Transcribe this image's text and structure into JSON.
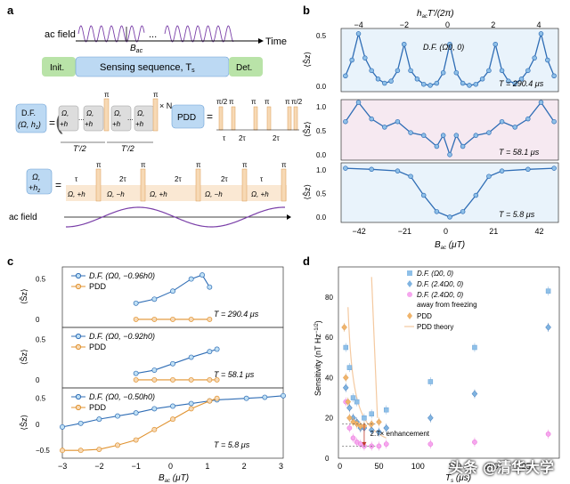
{
  "panels": {
    "a": {
      "label": "a",
      "ac_field": "ac field",
      "time": "Time",
      "bac": "B",
      "bac_sub": "ac",
      "dots": "...",
      "init": "Init.",
      "sensing": "Sensing sequence, T",
      "sensing_sub": "s",
      "det": "Det.",
      "df_line1": "D.F.",
      "df_line2": "(Ω, h",
      "df_line2_tail": ")",
      "pi": "π",
      "times_n": "× N",
      "half": "T'/2",
      "pdd": "PDD",
      "pi2": "π/2",
      "tau": "τ",
      "two_tau": "2τ",
      "omega_hz_a": "Ω,",
      "omega_hz_b": "+h",
      "seg_plus": "Ω, +h",
      "seg_minus": "Ω, −h",
      "ac_field2": "ac field"
    },
    "b": {
      "label": "b",
      "top_axis": "h",
      "top_axis_tail": "T'/(2π)",
      "top_ticks": [
        "−4",
        "−2",
        "0",
        "2",
        "4"
      ],
      "ylab": "⟨Ŝ",
      "legend": "D.F. (Ω",
      "legend_tail": ", 0)",
      "ts": [
        "T = 290.4 μs",
        "T = 58.1 μs",
        "T = 5.8 μs"
      ],
      "yticks1": [
        "0.5",
        "0.0"
      ],
      "yticks2": [
        "1.0",
        "0.5",
        "0.0"
      ],
      "yticks3": [
        "1.0",
        "0.5",
        "0.0"
      ],
      "xticks": [
        "−42",
        "−21",
        "0",
        "21",
        "42"
      ],
      "xlabel": "B",
      "xlabel_tail": " (μT)"
    },
    "c": {
      "label": "c",
      "legend_df": [
        "D.F. (Ω",
        "D.F. (Ω",
        "D.F. (Ω"
      ],
      "legend_df_tail": [
        ", −0.96h",
        ", −0.92h",
        ", −0.50h"
      ],
      "pdd": "PDD",
      "ts": [
        "T = 290.4 μs",
        "T = 58.1 μs",
        "T = 5.8 μs"
      ],
      "yticks1": [
        "0.5",
        "0"
      ],
      "yticks2": [
        "0.5",
        "0"
      ],
      "yticks3": [
        "0.5",
        "0",
        "−0.5"
      ],
      "xticks": [
        "−3",
        "−2",
        "−1",
        "0",
        "1",
        "2",
        "3"
      ],
      "xlabel": "B",
      "xlabel_tail": " (μT)",
      "ylab": "⟨Ŝ"
    },
    "d": {
      "label": "d",
      "yaxis": "Sensitivity (nT Hz",
      "yticks": [
        "80",
        "60",
        "40",
        "20",
        "0"
      ],
      "xticks": [
        "0",
        "50",
        "100",
        "150",
        "200",
        "250"
      ],
      "xlabel": "T",
      "xlabel_tail": " (μs)",
      "legend": [
        "D.F. (Ω",
        "D.F. (2.4Ω",
        "D.F. (2.4Ω",
        "away from freezing",
        "PDD",
        "PDD theory"
      ],
      "legend_tail": [
        ", 0)",
        ", 0)",
        ", 0)"
      ],
      "enhancement": "2.7× enhancement"
    }
  },
  "watermark": "头条 @清华大学",
  "colors": {
    "blue": "#2f6db5",
    "lightblue": "#8fc0e8",
    "orange": "#f0b46b",
    "pink": "#e86bd6",
    "purple": "#7a3fa8",
    "green": "#b9e3a8",
    "sky": "#bcd9f3",
    "peach": "#f7d9b5"
  },
  "chart_data": [
    {
      "type": "scatter",
      "title": "",
      "xlabel": "B_ac (μT)",
      "ylabel": "⟨S_z⟩",
      "xlim": [
        -50,
        50
      ],
      "series": [
        {
          "name": "T_s = 290.4 μs",
          "x": [
            -48,
            -45,
            -42,
            -39,
            -36,
            -33,
            -30,
            -27,
            -24,
            -21,
            -18,
            -15,
            -12,
            -9,
            -6,
            -3,
            0,
            3,
            6,
            9,
            12,
            15,
            18,
            21,
            24,
            27,
            30,
            33,
            36,
            39,
            42,
            45,
            48
          ],
          "y": [
            0.15,
            0.3,
            0.55,
            0.32,
            0.2,
            0.12,
            0.08,
            0.1,
            0.2,
            0.45,
            0.2,
            0.12,
            0.07,
            0.06,
            0.08,
            0.18,
            0.45,
            0.18,
            0.08,
            0.06,
            0.07,
            0.12,
            0.2,
            0.45,
            0.2,
            0.1,
            0.08,
            0.12,
            0.2,
            0.32,
            0.55,
            0.3,
            0.15
          ]
        },
        {
          "name": "T_s = 58.1 μs",
          "x": [
            -48,
            -42,
            -36,
            -30,
            -24,
            -18,
            -12,
            -6,
            -3,
            0,
            3,
            6,
            12,
            18,
            24,
            30,
            36,
            42,
            48
          ],
          "y": [
            0.7,
            1.05,
            0.75,
            0.6,
            0.7,
            0.5,
            0.45,
            0.25,
            0.45,
            0.1,
            0.45,
            0.25,
            0.45,
            0.5,
            0.7,
            0.6,
            0.75,
            1.05,
            0.7
          ]
        },
        {
          "name": "T_s = 5.8 μs",
          "x": [
            -48,
            -36,
            -24,
            -18,
            -12,
            -6,
            0,
            6,
            12,
            18,
            24,
            36,
            48
          ],
          "y": [
            1.0,
            0.98,
            0.95,
            0.85,
            0.5,
            0.2,
            0.1,
            0.2,
            0.5,
            0.85,
            0.95,
            0.98,
            1.0
          ]
        }
      ]
    },
    {
      "type": "scatter",
      "title": "",
      "xlabel": "B_ac (μT)",
      "ylabel": "⟨S_z⟩",
      "xlim": [
        -3,
        3
      ],
      "series": [
        {
          "name": "D.F. (Ω0, −0.96h0)",
          "x": [
            -1.0,
            -0.5,
            0,
            0.5,
            0.8,
            1.0
          ],
          "y": [
            0.2,
            0.25,
            0.35,
            0.5,
            0.55,
            0.4
          ]
        },
        {
          "name": "PDD",
          "x": [
            -1.0,
            -0.5,
            0,
            0.5,
            1.0
          ],
          "y": [
            0.0,
            0.0,
            0.0,
            0.0,
            0.0
          ]
        },
        {
          "name": "D.F. (Ω0, −0.92h0)",
          "x": [
            -1.0,
            -0.5,
            0,
            0.5,
            1.0,
            1.2
          ],
          "y": [
            0.08,
            0.12,
            0.2,
            0.28,
            0.35,
            0.38
          ]
        },
        {
          "name": "PDD",
          "x": [
            -1.0,
            -0.5,
            0,
            0.5,
            1.0,
            1.2
          ],
          "y": [
            0.0,
            0.0,
            0.0,
            0.0,
            0.0,
            0.0
          ]
        },
        {
          "name": "D.F. (Ω0, −0.50h0)",
          "x": [
            -3,
            -2.5,
            -2,
            -1.5,
            -1,
            -0.5,
            0,
            0.5,
            1,
            1.2,
            2,
            2.5,
            3
          ],
          "y": [
            -0.05,
            0.02,
            0.1,
            0.16,
            0.22,
            0.3,
            0.35,
            0.4,
            0.45,
            0.47,
            0.5,
            0.52,
            0.55
          ]
        },
        {
          "name": "PDD",
          "x": [
            -3,
            -2.5,
            -2,
            -1.5,
            -1,
            -0.5,
            0,
            0.5,
            1,
            1.2
          ],
          "y": [
            -0.5,
            -0.5,
            -0.48,
            -0.4,
            -0.3,
            -0.1,
            0.1,
            0.3,
            0.45,
            0.5
          ]
        }
      ]
    },
    {
      "type": "scatter",
      "title": "",
      "xlabel": "T_s (μs)",
      "ylabel": "Sensitivity (nT Hz^-1/2)",
      "xlim": [
        0,
        300
      ],
      "ylim": [
        0,
        90
      ],
      "series": [
        {
          "name": "D.F. (Ω0, 0)",
          "x": [
            5,
            10,
            15,
            20,
            30,
            40,
            60,
            120,
            180,
            280
          ],
          "y": [
            55,
            45,
            30,
            28,
            20,
            22,
            24,
            38,
            55,
            83
          ]
        },
        {
          "name": "D.F. (2.4Ω0, 0)",
          "x": [
            5,
            10,
            15,
            20,
            25,
            30,
            40,
            50,
            60,
            120,
            180,
            280
          ],
          "y": [
            35,
            25,
            20,
            18,
            15,
            15,
            14,
            13,
            15,
            20,
            32,
            65
          ]
        },
        {
          "name": "D.F. (2.4Ω0, 0) away from freezing",
          "x": [
            5,
            10,
            15,
            20,
            25,
            30,
            40,
            50,
            60,
            120,
            180,
            280
          ],
          "y": [
            28,
            15,
            10,
            8,
            7,
            6,
            6,
            6,
            7,
            7,
            8,
            12
          ]
        },
        {
          "name": "PDD",
          "x": [
            3,
            5,
            8,
            10,
            15,
            20,
            25,
            30,
            40,
            50
          ],
          "y": [
            65,
            40,
            28,
            20,
            18,
            17,
            16,
            16,
            17,
            18
          ]
        }
      ]
    }
  ]
}
